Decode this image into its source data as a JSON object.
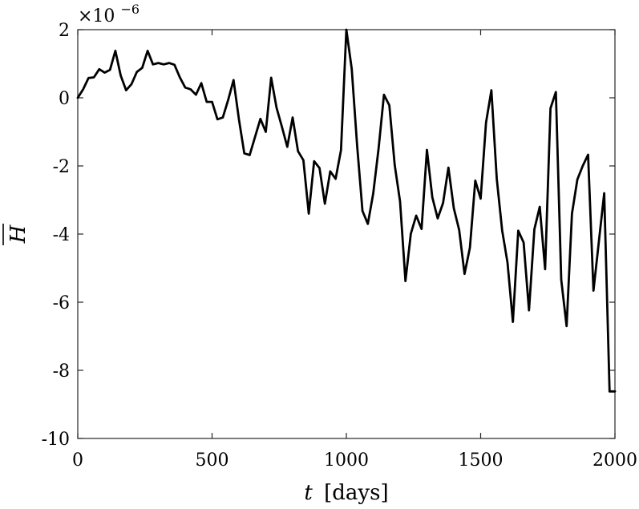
{
  "chart_data": {
    "type": "line",
    "title": "",
    "xlabel_var": "t",
    "xlabel_unit": "[days]",
    "ylabel": "H",
    "y_multiplier_base": "×10",
    "y_multiplier_exp": "−6",
    "xlim": [
      0,
      2000
    ],
    "ylim": [
      -10,
      2
    ],
    "xticks": [
      0,
      500,
      1000,
      1500,
      2000
    ],
    "xtick_labels": [
      "0",
      "500",
      "1000",
      "1500",
      "2000"
    ],
    "yticks": [
      2,
      0,
      -2,
      -4,
      -6,
      -8,
      -10
    ],
    "ytick_labels": [
      "2",
      "0",
      "-2",
      "-4",
      "-6",
      "-8",
      "-10"
    ],
    "grid": false,
    "line_color": "#000000",
    "series": [
      {
        "x": [
          0,
          20,
          40,
          60,
          80,
          100,
          120,
          140,
          160,
          180,
          200,
          220,
          240,
          260,
          280,
          300,
          320,
          340,
          360,
          380,
          400,
          420,
          440,
          460,
          480,
          500,
          520,
          540,
          560,
          580,
          600,
          620,
          640,
          660,
          680,
          700,
          720,
          740,
          760,
          780,
          800,
          820,
          840,
          860,
          880,
          900,
          920,
          940,
          960,
          980,
          1000,
          1020,
          1040,
          1060,
          1080,
          1100,
          1120,
          1140,
          1160,
          1180,
          1200,
          1220,
          1240,
          1260,
          1280,
          1300,
          1320,
          1340,
          1360,
          1380,
          1400,
          1420,
          1440,
          1460,
          1480,
          1500,
          1520,
          1540,
          1560,
          1580,
          1600,
          1620,
          1640,
          1660,
          1680,
          1700,
          1720,
          1740,
          1760,
          1780,
          1800,
          1820,
          1840,
          1860,
          1880,
          1900,
          1920,
          1940,
          1960,
          1980,
          2000
        ],
        "values": [
          0.0,
          0.25,
          0.58,
          0.6,
          0.84,
          0.74,
          0.82,
          1.38,
          0.65,
          0.22,
          0.4,
          0.76,
          0.88,
          1.38,
          0.98,
          1.02,
          0.98,
          1.02,
          0.97,
          0.6,
          0.3,
          0.25,
          0.09,
          0.43,
          -0.12,
          -0.12,
          -0.63,
          -0.58,
          -0.06,
          0.52,
          -0.63,
          -1.63,
          -1.68,
          -1.15,
          -0.62,
          -1.0,
          0.59,
          -0.29,
          -0.85,
          -1.44,
          -0.58,
          -1.57,
          -1.83,
          -3.4,
          -1.86,
          -2.06,
          -3.11,
          -2.16,
          -2.38,
          -1.54,
          2.0,
          0.85,
          -1.39,
          -3.32,
          -3.7,
          -2.81,
          -1.49,
          0.09,
          -0.22,
          -1.97,
          -3.05,
          -5.38,
          -3.99,
          -3.46,
          -3.85,
          -1.53,
          -2.92,
          -3.54,
          -3.09,
          -2.05,
          -3.24,
          -3.88,
          -5.17,
          -4.4,
          -2.43,
          -2.96,
          -0.73,
          0.22,
          -2.38,
          -3.89,
          -4.84,
          -6.58,
          -3.9,
          -4.25,
          -6.24,
          -3.86,
          -3.2,
          -5.03,
          -0.31,
          0.17,
          -5.34,
          -6.7,
          -3.4,
          -2.4,
          -2.0,
          -1.67,
          -5.66,
          -4.23,
          -2.8,
          -8.62,
          -8.62
        ]
      }
    ]
  }
}
